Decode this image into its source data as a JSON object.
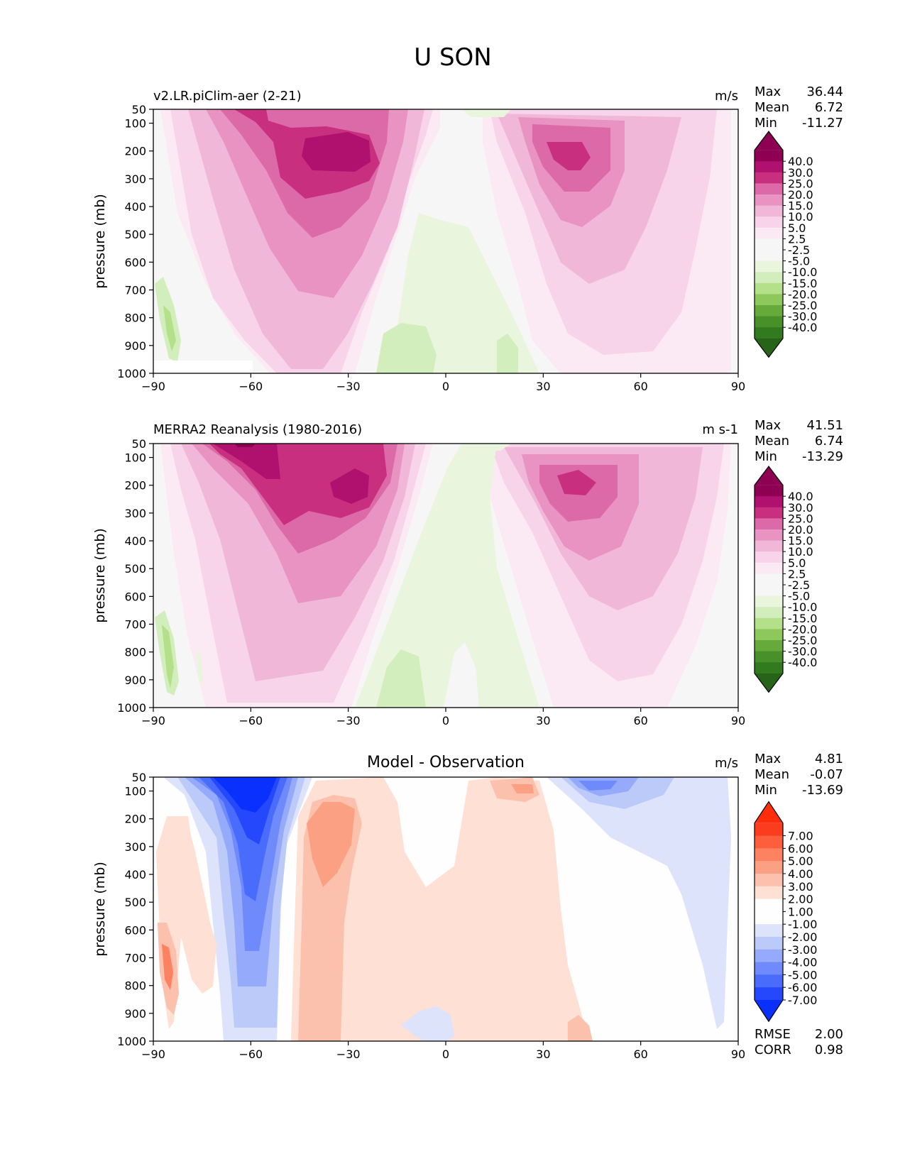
{
  "figure": {
    "title": "U SON"
  },
  "chart_data": [
    {
      "type": "heatmap",
      "left_label": "v2.LR.piClim-aer (2-21)",
      "units": "m/s",
      "xlabel": "",
      "ylabel": "pressure (mb)",
      "xlim": [
        -90,
        90
      ],
      "ylim": [
        1000,
        50
      ],
      "x_ticks": [
        "−90",
        "−60",
        "−30",
        "0",
        "30",
        "60",
        "90"
      ],
      "y_ticks": [
        "50",
        "100",
        "200",
        "300",
        "400",
        "500",
        "600",
        "700",
        "800",
        "900",
        "1000"
      ],
      "stats": {
        "labels": [
          "Max",
          "Mean",
          "Min"
        ],
        "values": [
          "36.44",
          "6.72",
          "-11.27"
        ]
      },
      "colorbar": {
        "labels": [
          "40.0",
          "30.0",
          "25.0",
          "20.0",
          "15.0",
          "10.0",
          "5.0",
          "2.5",
          "-2.5",
          "-5.0",
          "-10.0",
          "-15.0",
          "-20.0",
          "-25.0",
          "-30.0",
          "-40.0"
        ],
        "colors": [
          "#8e0152",
          "#b0106e",
          "#c8307f",
          "#dd6aa8",
          "#e893c1",
          "#f1b7d9",
          "#f7d4e9",
          "#fbeaf3",
          "#f6f6f6",
          "#f6f6f6",
          "#e9f5dc",
          "#d3eebd",
          "#b5e08a",
          "#8cc85b",
          "#66aa3b",
          "#48902a",
          "#317b1e"
        ],
        "over_color": "#8e0152",
        "under_color": "#276419"
      },
      "features": [
        {
          "kind": "jet",
          "lat": -33,
          "p": 210,
          "peak": 36
        },
        {
          "kind": "jet",
          "lat": 40,
          "p": 220,
          "peak": 28
        }
      ]
    },
    {
      "type": "heatmap",
      "left_label": "MERRA2 Reanalysis (1980-2016)",
      "units": "m s-1",
      "xlabel": "",
      "ylabel": "pressure (mb)",
      "xlim": [
        -90,
        90
      ],
      "ylim": [
        1000,
        50
      ],
      "x_ticks": [
        "−90",
        "−60",
        "−30",
        "0",
        "30",
        "60",
        "90"
      ],
      "y_ticks": [
        "50",
        "100",
        "200",
        "300",
        "400",
        "500",
        "600",
        "700",
        "800",
        "900",
        "1000"
      ],
      "stats": {
        "labels": [
          "Max",
          "Mean",
          "Min"
        ],
        "values": [
          "41.51",
          "6.74",
          "-13.29"
        ]
      },
      "colorbar": {
        "labels": [
          "40.0",
          "30.0",
          "25.0",
          "20.0",
          "15.0",
          "10.0",
          "5.0",
          "2.5",
          "-2.5",
          "-5.0",
          "-10.0",
          "-15.0",
          "-20.0",
          "-25.0",
          "-30.0",
          "-40.0"
        ],
        "colors": [
          "#8e0152",
          "#b0106e",
          "#c8307f",
          "#dd6aa8",
          "#e893c1",
          "#f1b7d9",
          "#f7d4e9",
          "#fbeaf3",
          "#f6f6f6",
          "#f6f6f6",
          "#e9f5dc",
          "#d3eebd",
          "#b5e08a",
          "#8cc85b",
          "#66aa3b",
          "#48902a",
          "#317b1e"
        ],
        "over_color": "#8e0152",
        "under_color": "#276419"
      },
      "features": [
        {
          "kind": "jet",
          "lat": -55,
          "p": 80,
          "peak": 41
        },
        {
          "kind": "jet",
          "lat": -30,
          "p": 210,
          "peak": 32
        },
        {
          "kind": "jet",
          "lat": 40,
          "p": 200,
          "peak": 30
        }
      ]
    },
    {
      "type": "heatmap",
      "title": "Model - Observation",
      "units": "m/s",
      "xlabel": "",
      "ylabel": "pressure (mb)",
      "xlim": [
        -90,
        90
      ],
      "ylim": [
        1000,
        50
      ],
      "x_ticks": [
        "−90",
        "−60",
        "−30",
        "0",
        "30",
        "60",
        "90"
      ],
      "y_ticks": [
        "50",
        "100",
        "200",
        "300",
        "400",
        "500",
        "600",
        "700",
        "800",
        "900",
        "1000"
      ],
      "stats": {
        "labels": [
          "Max",
          "Mean",
          "Min"
        ],
        "values": [
          "4.81",
          "-0.07",
          "-13.69"
        ]
      },
      "extra_stats": {
        "labels": [
          "RMSE",
          "CORR"
        ],
        "values": [
          "2.00",
          "0.98"
        ]
      },
      "colorbar": {
        "labels": [
          "7.00",
          "6.00",
          "5.00",
          "4.00",
          "3.00",
          "2.00",
          "1.00",
          "-1.00",
          "-2.00",
          "-3.00",
          "-4.00",
          "-5.00",
          "-6.00",
          "-7.00"
        ],
        "colors": [
          "#fc3c1e",
          "#fd5e3c",
          "#fc8262",
          "#fca083",
          "#fcc1ac",
          "#fee0d5",
          "#fefefe",
          "#fefefe",
          "#dce3fb",
          "#bccafa",
          "#95aafa",
          "#6f8afb",
          "#4a6cfc",
          "#2548fd"
        ],
        "over_color": "#ff2d0a",
        "under_color": "#0a30fe"
      },
      "features": [
        {
          "kind": "anomaly",
          "lat": -59,
          "p": 90,
          "value": -13
        },
        {
          "kind": "anomaly",
          "lat": -38,
          "p": 250,
          "value": 4
        },
        {
          "kind": "anomaly",
          "lat": -87,
          "p": 730,
          "value": 4.8
        },
        {
          "kind": "anomaly",
          "lat": 45,
          "p": 90,
          "value": -5
        }
      ]
    }
  ]
}
